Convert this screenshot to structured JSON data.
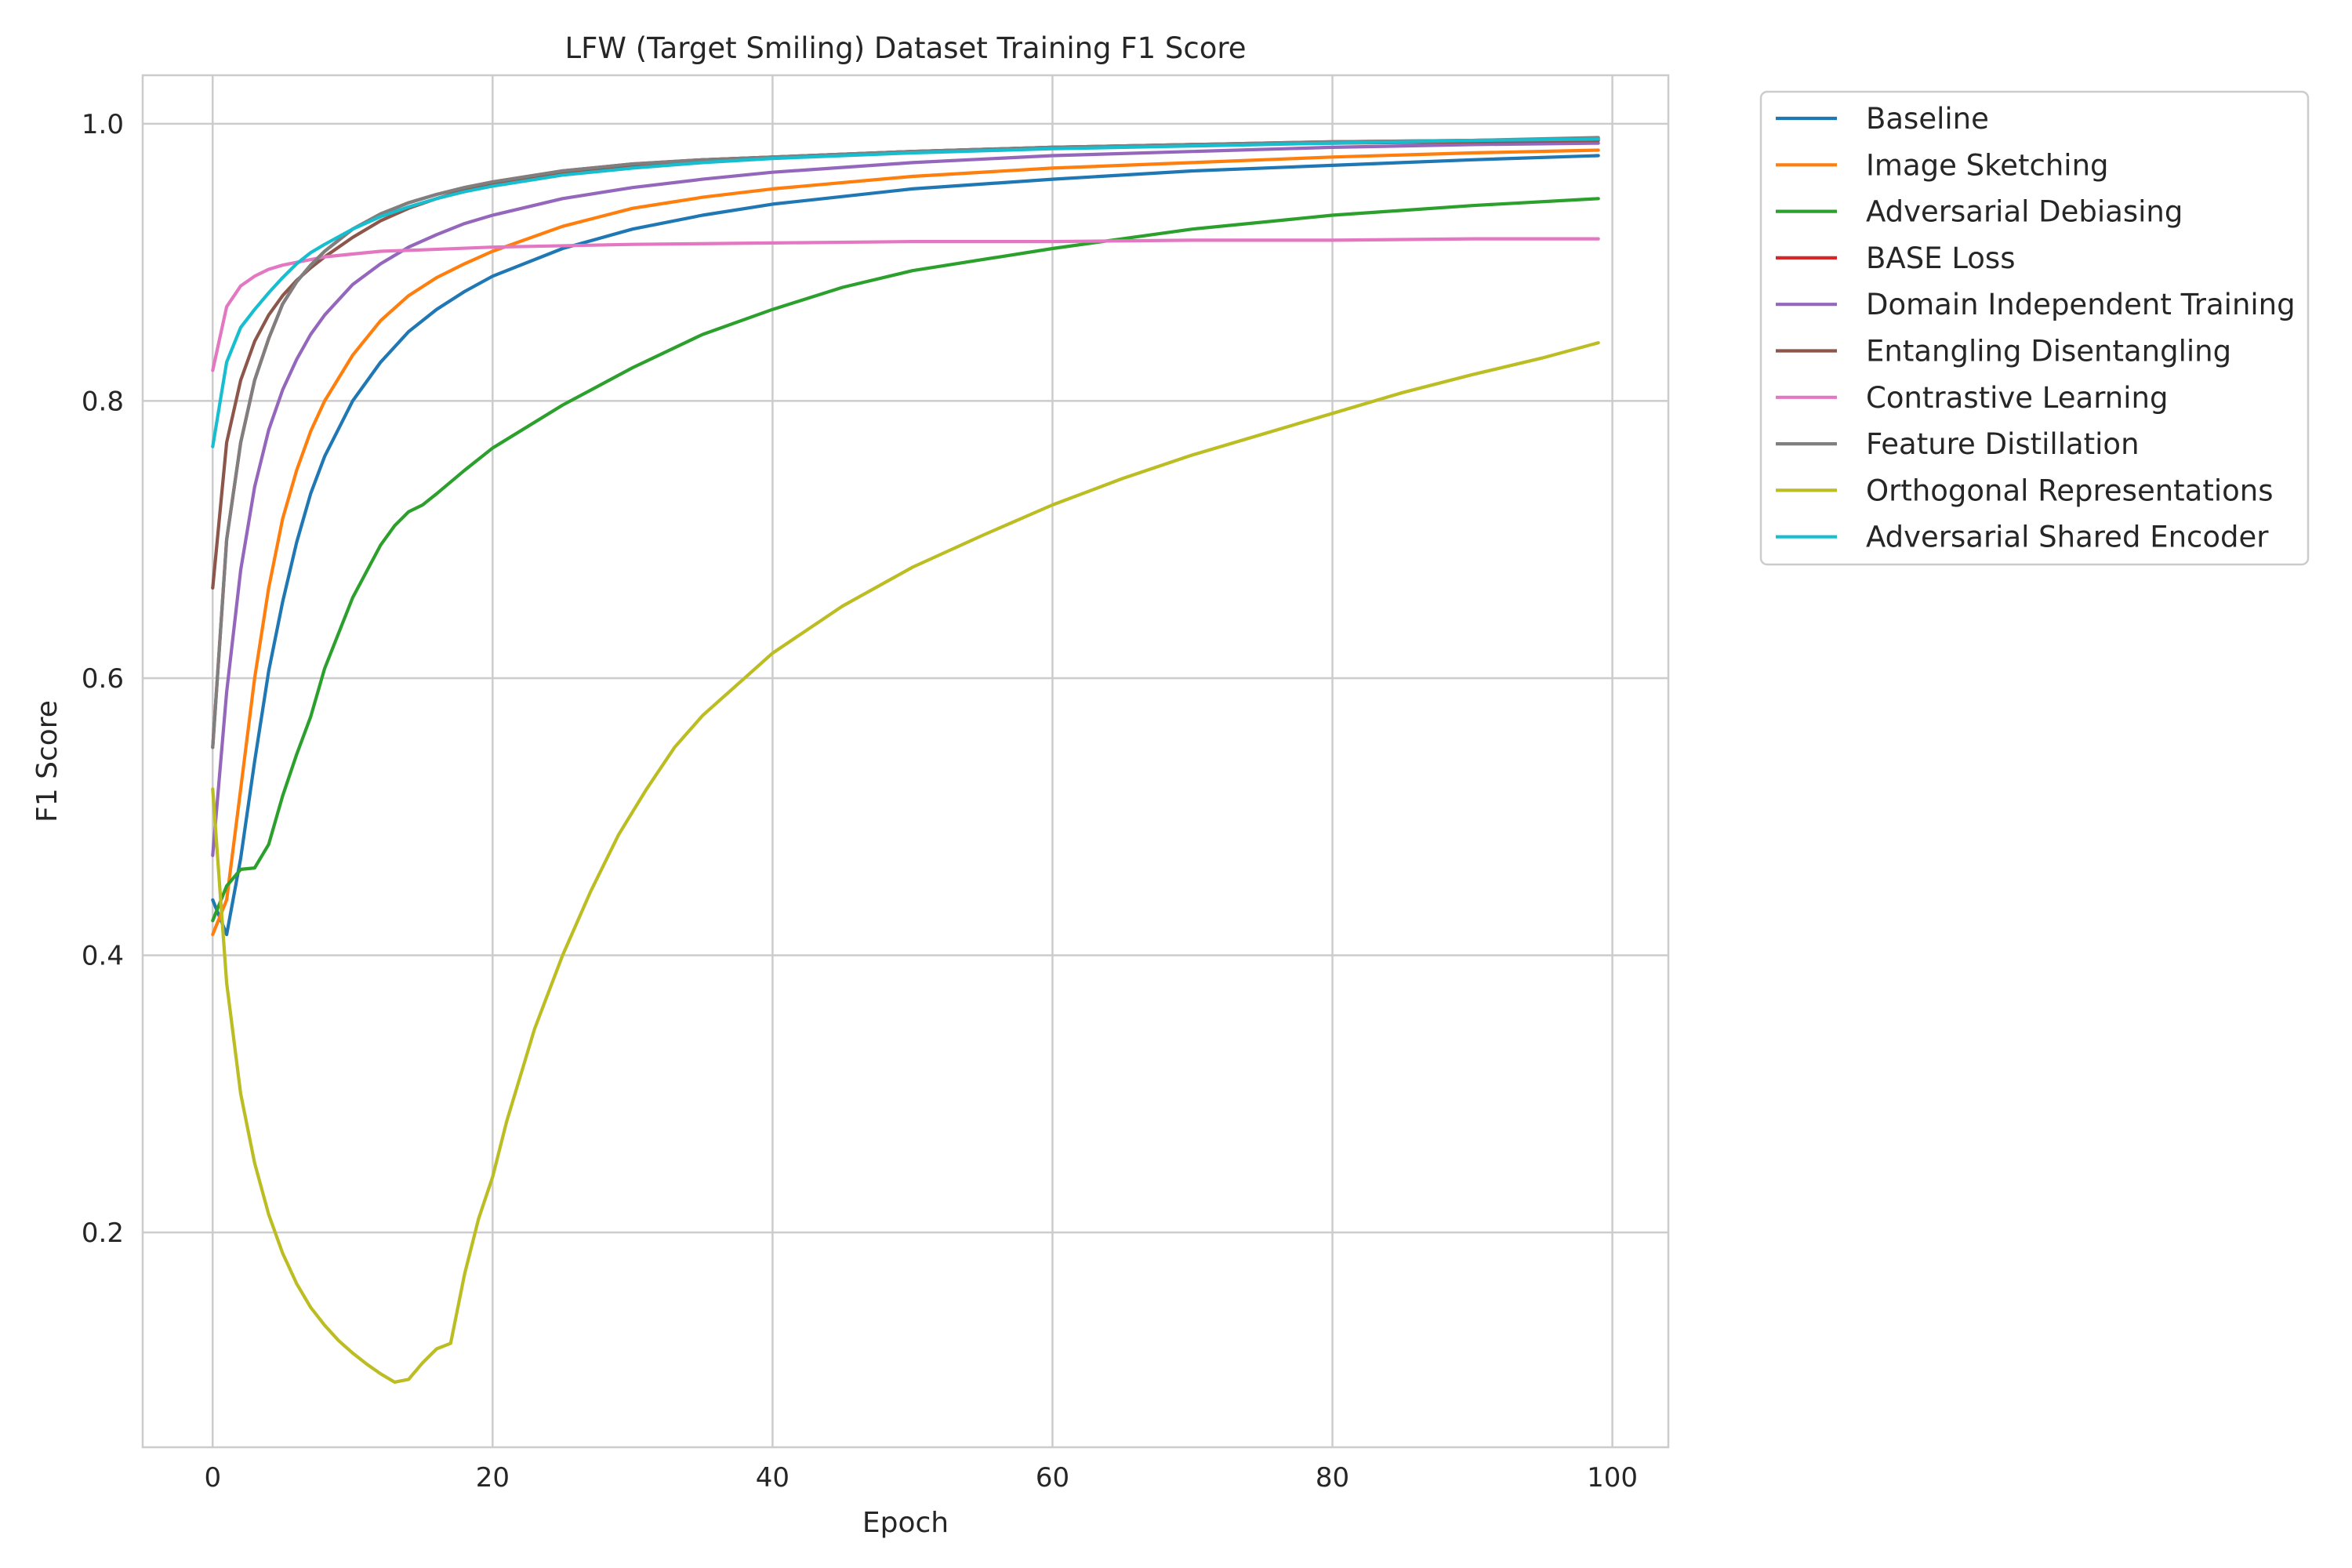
{
  "colors": {
    "baseline": "#1f77b4",
    "image_sketching": "#ff7f0e",
    "adversarial_debiasing": "#2ca02c",
    "base_loss": "#d62728",
    "domain_independent": "#9467bd",
    "entangling": "#8c564b",
    "contrastive": "#e377c2",
    "feature_distillation": "#7f7f7f",
    "orthogonal": "#bcbd22",
    "adversarial_shared": "#17becf",
    "grid": "#cccccc",
    "axes": "#cccccc",
    "text": "#262626"
  },
  "chart_data": {
    "type": "line",
    "title": "LFW (Target Smiling) Dataset Training F1 Score",
    "xlabel": "Epoch",
    "ylabel": "F1 Score",
    "xlim": [
      -5,
      104
    ],
    "ylim": [
      0.045,
      1.035
    ],
    "xticks": [
      0,
      20,
      40,
      60,
      80,
      100
    ],
    "yticks": [
      0.2,
      0.4,
      0.6,
      0.8,
      1.0
    ],
    "grid": true,
    "legend_position": "outside-upper-right",
    "series": [
      {
        "name": "Baseline",
        "color_key": "baseline",
        "x": [
          0,
          1,
          2,
          3,
          4,
          5,
          6,
          7,
          8,
          10,
          12,
          14,
          16,
          18,
          20,
          25,
          30,
          35,
          40,
          50,
          60,
          70,
          80,
          90,
          99
        ],
        "y": [
          0.44,
          0.415,
          0.47,
          0.54,
          0.605,
          0.655,
          0.698,
          0.733,
          0.76,
          0.8,
          0.828,
          0.85,
          0.866,
          0.879,
          0.89,
          0.91,
          0.924,
          0.934,
          0.942,
          0.953,
          0.96,
          0.966,
          0.97,
          0.974,
          0.977
        ]
      },
      {
        "name": "Image Sketching",
        "color_key": "image_sketching",
        "x": [
          0,
          1,
          2,
          3,
          4,
          5,
          6,
          7,
          8,
          10,
          12,
          14,
          16,
          18,
          20,
          25,
          30,
          35,
          40,
          50,
          60,
          70,
          80,
          90,
          99
        ],
        "y": [
          0.415,
          0.44,
          0.52,
          0.6,
          0.665,
          0.715,
          0.75,
          0.778,
          0.8,
          0.833,
          0.858,
          0.876,
          0.889,
          0.899,
          0.908,
          0.926,
          0.939,
          0.947,
          0.953,
          0.962,
          0.968,
          0.972,
          0.976,
          0.979,
          0.981
        ]
      },
      {
        "name": "Adversarial Debiasing",
        "color_key": "adversarial_debiasing",
        "x": [
          0,
          1,
          2,
          3,
          4,
          5,
          6,
          7,
          8,
          10,
          12,
          13,
          14,
          15,
          16,
          18,
          20,
          25,
          30,
          35,
          40,
          45,
          50,
          60,
          70,
          80,
          90,
          99
        ],
        "y": [
          0.425,
          0.45,
          0.462,
          0.463,
          0.48,
          0.515,
          0.545,
          0.572,
          0.607,
          0.658,
          0.696,
          0.71,
          0.72,
          0.725,
          0.733,
          0.75,
          0.766,
          0.797,
          0.824,
          0.848,
          0.866,
          0.882,
          0.894,
          0.91,
          0.924,
          0.934,
          0.941,
          0.946
        ]
      },
      {
        "name": "BASE Loss",
        "color_key": "base_loss",
        "x": [
          0,
          1,
          2,
          3,
          4,
          5,
          6,
          7,
          8,
          10,
          12,
          14,
          16,
          18,
          20,
          25,
          30,
          35,
          40,
          50,
          60,
          70,
          80,
          90,
          99
        ],
        "y": [
          0.55,
          0.7,
          0.77,
          0.815,
          0.845,
          0.87,
          0.886,
          0.898,
          0.908,
          0.924,
          0.935,
          0.943,
          0.949,
          0.954,
          0.958,
          0.966,
          0.971,
          0.974,
          0.976,
          0.98,
          0.983,
          0.985,
          0.987,
          0.988,
          0.989
        ]
      },
      {
        "name": "Domain Independent Training",
        "color_key": "domain_independent",
        "x": [
          0,
          1,
          2,
          3,
          4,
          5,
          6,
          7,
          8,
          10,
          12,
          14,
          16,
          18,
          20,
          25,
          30,
          35,
          40,
          50,
          60,
          70,
          80,
          90,
          99
        ],
        "y": [
          0.472,
          0.59,
          0.678,
          0.738,
          0.779,
          0.808,
          0.83,
          0.848,
          0.862,
          0.884,
          0.899,
          0.911,
          0.92,
          0.928,
          0.934,
          0.946,
          0.954,
          0.96,
          0.965,
          0.972,
          0.977,
          0.98,
          0.983,
          0.985,
          0.986
        ]
      },
      {
        "name": "Entangling Disentangling",
        "color_key": "entangling",
        "x": [
          0,
          1,
          2,
          3,
          4,
          5,
          6,
          7,
          8,
          10,
          12,
          14,
          16,
          18,
          20,
          25,
          30,
          35,
          40,
          50,
          60,
          70,
          80,
          90,
          99
        ],
        "y": [
          0.665,
          0.77,
          0.815,
          0.843,
          0.862,
          0.876,
          0.887,
          0.896,
          0.904,
          0.918,
          0.93,
          0.939,
          0.946,
          0.952,
          0.957,
          0.965,
          0.97,
          0.974,
          0.976,
          0.98,
          0.983,
          0.985,
          0.986,
          0.987,
          0.988
        ]
      },
      {
        "name": "Contrastive Learning",
        "color_key": "contrastive",
        "x": [
          0,
          1,
          2,
          3,
          4,
          5,
          6,
          8,
          10,
          12,
          15,
          20,
          30,
          40,
          50,
          60,
          70,
          80,
          90,
          99
        ],
        "y": [
          0.822,
          0.868,
          0.883,
          0.89,
          0.895,
          0.898,
          0.9,
          0.904,
          0.906,
          0.908,
          0.909,
          0.911,
          0.913,
          0.914,
          0.915,
          0.915,
          0.916,
          0.916,
          0.917,
          0.917
        ]
      },
      {
        "name": "Feature Distillation",
        "color_key": "feature_distillation",
        "x": [
          0,
          1,
          2,
          3,
          4,
          5,
          6,
          7,
          8,
          10,
          12,
          14,
          16,
          18,
          20,
          25,
          30,
          35,
          40,
          50,
          60,
          70,
          80,
          90,
          99
        ],
        "y": [
          0.55,
          0.7,
          0.77,
          0.815,
          0.845,
          0.87,
          0.886,
          0.898,
          0.908,
          0.924,
          0.935,
          0.943,
          0.949,
          0.954,
          0.958,
          0.966,
          0.971,
          0.974,
          0.976,
          0.98,
          0.983,
          0.985,
          0.987,
          0.988,
          0.99
        ]
      },
      {
        "name": "Orthogonal Representations",
        "color_key": "orthogonal",
        "x": [
          0,
          1,
          2,
          3,
          4,
          5,
          6,
          7,
          8,
          9,
          10,
          11,
          12,
          13,
          14,
          15,
          16,
          17,
          18,
          19,
          20,
          21,
          23,
          25,
          27,
          29,
          31,
          33,
          35,
          38,
          40,
          45,
          50,
          55,
          60,
          65,
          70,
          75,
          80,
          85,
          90,
          95,
          99
        ],
        "y": [
          0.52,
          0.38,
          0.3,
          0.25,
          0.213,
          0.185,
          0.163,
          0.146,
          0.133,
          0.122,
          0.113,
          0.105,
          0.098,
          0.092,
          0.094,
          0.106,
          0.116,
          0.12,
          0.17,
          0.21,
          0.24,
          0.28,
          0.347,
          0.4,
          0.446,
          0.487,
          0.52,
          0.55,
          0.573,
          0.6,
          0.618,
          0.652,
          0.68,
          0.703,
          0.725,
          0.744,
          0.761,
          0.776,
          0.791,
          0.806,
          0.819,
          0.831,
          0.842
        ]
      },
      {
        "name": "Adversarial Shared Encoder",
        "color_key": "adversarial_shared",
        "x": [
          0,
          1,
          2,
          3,
          4,
          5,
          6,
          7,
          8,
          10,
          12,
          14,
          16,
          18,
          20,
          25,
          30,
          35,
          40,
          50,
          60,
          70,
          80,
          90,
          99
        ],
        "y": [
          0.767,
          0.828,
          0.853,
          0.866,
          0.878,
          0.889,
          0.899,
          0.907,
          0.913,
          0.924,
          0.933,
          0.94,
          0.946,
          0.951,
          0.955,
          0.963,
          0.968,
          0.972,
          0.975,
          0.979,
          0.982,
          0.984,
          0.986,
          0.988,
          0.989
        ]
      }
    ]
  }
}
